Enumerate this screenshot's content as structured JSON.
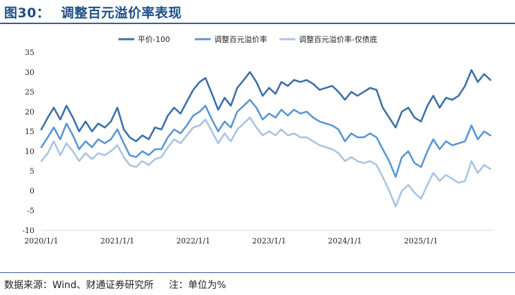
{
  "header": {
    "figure_label": "图30：",
    "title": "调整百元溢价率表现"
  },
  "footer": {
    "source": "数据来源：Wind、财通证券研究所",
    "note": "注：单位为%"
  },
  "colors": {
    "title": "#1a4f86",
    "rule": "#2f5f98",
    "series1": "#3e6fa6",
    "series2": "#5b96d2",
    "series3": "#a9c4e4"
  },
  "chart_data": {
    "type": "line",
    "title": "",
    "xlabel": "",
    "ylabel": "",
    "ylim": [
      -10,
      35
    ],
    "yticks": [
      35,
      30,
      25,
      20,
      15,
      10,
      5,
      0,
      -5,
      -10
    ],
    "xlim": [
      "2020-01-01",
      "2025-12-20"
    ],
    "xticks": [
      "2020/1/1",
      "2021/1/1",
      "2022/1/1",
      "2023/1/1",
      "2024/1/1",
      "2025/1/1"
    ],
    "legend": "top-center",
    "grid": false,
    "series": [
      {
        "name": "平价-100",
        "color": "#3e6fa6",
        "points": [
          [
            "2020-01-01",
            15.5
          ],
          [
            "2020-02-01",
            18.5
          ],
          [
            "2020-03-01",
            21.0
          ],
          [
            "2020-04-01",
            18.0
          ],
          [
            "2020-05-01",
            21.5
          ],
          [
            "2020-06-01",
            18.5
          ],
          [
            "2020-07-01",
            15.0
          ],
          [
            "2020-08-01",
            17.5
          ],
          [
            "2020-09-01",
            15.0
          ],
          [
            "2020-10-01",
            17.0
          ],
          [
            "2020-11-01",
            16.0
          ],
          [
            "2020-12-01",
            17.5
          ],
          [
            "2021-01-01",
            21.0
          ],
          [
            "2021-02-01",
            15.5
          ],
          [
            "2021-03-01",
            13.5
          ],
          [
            "2021-04-01",
            12.5
          ],
          [
            "2021-05-01",
            14.0
          ],
          [
            "2021-06-01",
            13.0
          ],
          [
            "2021-07-01",
            16.0
          ],
          [
            "2021-08-01",
            15.5
          ],
          [
            "2021-09-01",
            19.0
          ],
          [
            "2021-10-01",
            21.0
          ],
          [
            "2021-11-01",
            19.5
          ],
          [
            "2021-12-01",
            22.5
          ],
          [
            "2022-01-01",
            25.5
          ],
          [
            "2022-02-01",
            27.5
          ],
          [
            "2022-03-01",
            28.5
          ],
          [
            "2022-04-01",
            24.5
          ],
          [
            "2022-05-01",
            20.5
          ],
          [
            "2022-06-01",
            23.5
          ],
          [
            "2022-07-01",
            21.5
          ],
          [
            "2022-08-01",
            26.0
          ],
          [
            "2022-09-01",
            28.0
          ],
          [
            "2022-10-01",
            30.0
          ],
          [
            "2022-11-01",
            27.5
          ],
          [
            "2022-12-01",
            24.0
          ],
          [
            "2023-01-01",
            26.0
          ],
          [
            "2023-02-01",
            24.5
          ],
          [
            "2023-03-01",
            27.5
          ],
          [
            "2023-04-01",
            26.5
          ],
          [
            "2023-05-01",
            28.0
          ],
          [
            "2023-06-01",
            27.5
          ],
          [
            "2023-07-01",
            28.0
          ],
          [
            "2023-08-01",
            27.0
          ],
          [
            "2023-09-01",
            25.5
          ],
          [
            "2023-10-01",
            26.0
          ],
          [
            "2023-11-01",
            26.5
          ],
          [
            "2023-12-01",
            25.0
          ],
          [
            "2024-01-01",
            23.0
          ],
          [
            "2024-02-01",
            25.0
          ],
          [
            "2024-03-01",
            24.0
          ],
          [
            "2024-04-01",
            25.0
          ],
          [
            "2024-05-01",
            26.0
          ],
          [
            "2024-06-01",
            25.5
          ],
          [
            "2024-07-01",
            21.0
          ],
          [
            "2024-08-01",
            18.5
          ],
          [
            "2024-09-01",
            16.0
          ],
          [
            "2024-10-01",
            20.0
          ],
          [
            "2024-11-01",
            21.0
          ],
          [
            "2024-12-01",
            18.5
          ],
          [
            "2025-01-01",
            17.5
          ],
          [
            "2025-02-01",
            21.5
          ],
          [
            "2025-03-01",
            24.0
          ],
          [
            "2025-04-01",
            21.0
          ],
          [
            "2025-05-01",
            23.5
          ],
          [
            "2025-06-01",
            23.0
          ],
          [
            "2025-07-01",
            24.0
          ],
          [
            "2025-08-01",
            26.5
          ],
          [
            "2025-09-01",
            30.5
          ],
          [
            "2025-10-01",
            27.5
          ],
          [
            "2025-11-01",
            29.5
          ],
          [
            "2025-12-01",
            28.0
          ]
        ]
      },
      {
        "name": "调整百元溢价率",
        "color": "#5b96d2",
        "points": [
          [
            "2020-01-01",
            11.0
          ],
          [
            "2020-02-01",
            13.5
          ],
          [
            "2020-03-01",
            16.0
          ],
          [
            "2020-04-01",
            13.0
          ],
          [
            "2020-05-01",
            17.0
          ],
          [
            "2020-06-01",
            14.0
          ],
          [
            "2020-07-01",
            10.5
          ],
          [
            "2020-08-01",
            12.5
          ],
          [
            "2020-09-01",
            11.0
          ],
          [
            "2020-10-01",
            13.0
          ],
          [
            "2020-11-01",
            12.0
          ],
          [
            "2020-12-01",
            13.0
          ],
          [
            "2021-01-01",
            15.5
          ],
          [
            "2021-02-01",
            12.0
          ],
          [
            "2021-03-01",
            9.0
          ],
          [
            "2021-04-01",
            8.5
          ],
          [
            "2021-05-01",
            10.0
          ],
          [
            "2021-06-01",
            9.0
          ],
          [
            "2021-07-01",
            10.5
          ],
          [
            "2021-08-01",
            10.5
          ],
          [
            "2021-09-01",
            13.5
          ],
          [
            "2021-10-01",
            15.5
          ],
          [
            "2021-11-01",
            14.5
          ],
          [
            "2021-12-01",
            16.5
          ],
          [
            "2022-01-01",
            19.0
          ],
          [
            "2022-02-01",
            20.0
          ],
          [
            "2022-03-01",
            21.5
          ],
          [
            "2022-04-01",
            18.0
          ],
          [
            "2022-05-01",
            15.0
          ],
          [
            "2022-06-01",
            17.5
          ],
          [
            "2022-07-01",
            16.0
          ],
          [
            "2022-08-01",
            20.0
          ],
          [
            "2022-09-01",
            21.5
          ],
          [
            "2022-10-01",
            23.0
          ],
          [
            "2022-11-01",
            21.0
          ],
          [
            "2022-12-01",
            18.0
          ],
          [
            "2023-01-01",
            19.5
          ],
          [
            "2023-02-01",
            18.5
          ],
          [
            "2023-03-01",
            20.5
          ],
          [
            "2023-04-01",
            19.0
          ],
          [
            "2023-05-01",
            20.5
          ],
          [
            "2023-06-01",
            19.5
          ],
          [
            "2023-07-01",
            20.0
          ],
          [
            "2023-08-01",
            18.5
          ],
          [
            "2023-09-01",
            17.5
          ],
          [
            "2023-10-01",
            17.0
          ],
          [
            "2023-11-01",
            16.5
          ],
          [
            "2023-12-01",
            15.5
          ],
          [
            "2024-01-01",
            12.5
          ],
          [
            "2024-02-01",
            14.5
          ],
          [
            "2024-03-01",
            13.5
          ],
          [
            "2024-04-01",
            13.5
          ],
          [
            "2024-05-01",
            14.5
          ],
          [
            "2024-06-01",
            13.5
          ],
          [
            "2024-07-01",
            10.5
          ],
          [
            "2024-08-01",
            7.5
          ],
          [
            "2024-09-01",
            3.5
          ],
          [
            "2024-10-01",
            8.5
          ],
          [
            "2024-11-01",
            10.0
          ],
          [
            "2024-12-01",
            7.0
          ],
          [
            "2025-01-01",
            6.0
          ],
          [
            "2025-02-01",
            10.0
          ],
          [
            "2025-03-01",
            13.0
          ],
          [
            "2025-04-01",
            10.5
          ],
          [
            "2025-05-01",
            12.5
          ],
          [
            "2025-06-01",
            11.5
          ],
          [
            "2025-07-01",
            12.0
          ],
          [
            "2025-08-01",
            12.5
          ],
          [
            "2025-09-01",
            16.5
          ],
          [
            "2025-10-01",
            13.0
          ],
          [
            "2025-11-01",
            15.0
          ],
          [
            "2025-12-01",
            14.0
          ]
        ]
      },
      {
        "name": "调整百元溢价率-仅债底",
        "color": "#a9c4e4",
        "points": [
          [
            "2020-01-01",
            7.5
          ],
          [
            "2020-02-01",
            9.5
          ],
          [
            "2020-03-01",
            12.5
          ],
          [
            "2020-04-01",
            9.0
          ],
          [
            "2020-05-01",
            12.0
          ],
          [
            "2020-06-01",
            10.0
          ],
          [
            "2020-07-01",
            7.5
          ],
          [
            "2020-08-01",
            9.5
          ],
          [
            "2020-09-01",
            8.0
          ],
          [
            "2020-10-01",
            9.5
          ],
          [
            "2020-11-01",
            9.0
          ],
          [
            "2020-12-01",
            10.0
          ],
          [
            "2021-01-01",
            11.5
          ],
          [
            "2021-02-01",
            8.5
          ],
          [
            "2021-03-01",
            6.5
          ],
          [
            "2021-04-01",
            6.0
          ],
          [
            "2021-05-01",
            7.5
          ],
          [
            "2021-06-01",
            6.5
          ],
          [
            "2021-07-01",
            8.0
          ],
          [
            "2021-08-01",
            8.5
          ],
          [
            "2021-09-01",
            11.0
          ],
          [
            "2021-10-01",
            13.0
          ],
          [
            "2021-11-01",
            12.0
          ],
          [
            "2021-12-01",
            14.0
          ],
          [
            "2022-01-01",
            16.0
          ],
          [
            "2022-02-01",
            16.5
          ],
          [
            "2022-03-01",
            18.0
          ],
          [
            "2022-04-01",
            15.0
          ],
          [
            "2022-05-01",
            12.0
          ],
          [
            "2022-06-01",
            14.5
          ],
          [
            "2022-07-01",
            12.5
          ],
          [
            "2022-08-01",
            15.5
          ],
          [
            "2022-09-01",
            17.0
          ],
          [
            "2022-10-01",
            18.5
          ],
          [
            "2022-11-01",
            16.0
          ],
          [
            "2022-12-01",
            14.0
          ],
          [
            "2023-01-01",
            15.0
          ],
          [
            "2023-02-01",
            14.0
          ],
          [
            "2023-03-01",
            15.5
          ],
          [
            "2023-04-01",
            14.0
          ],
          [
            "2023-05-01",
            14.5
          ],
          [
            "2023-06-01",
            13.5
          ],
          [
            "2023-07-01",
            13.5
          ],
          [
            "2023-08-01",
            12.5
          ],
          [
            "2023-09-01",
            11.5
          ],
          [
            "2023-10-01",
            11.0
          ],
          [
            "2023-11-01",
            10.5
          ],
          [
            "2023-12-01",
            9.5
          ],
          [
            "2024-01-01",
            7.5
          ],
          [
            "2024-02-01",
            8.5
          ],
          [
            "2024-03-01",
            7.5
          ],
          [
            "2024-04-01",
            7.0
          ],
          [
            "2024-05-01",
            7.5
          ],
          [
            "2024-06-01",
            6.5
          ],
          [
            "2024-07-01",
            3.5
          ],
          [
            "2024-08-01",
            0.0
          ],
          [
            "2024-09-01",
            -4.0
          ],
          [
            "2024-10-01",
            0.0
          ],
          [
            "2024-11-01",
            1.5
          ],
          [
            "2024-12-01",
            -0.5
          ],
          [
            "2025-01-01",
            -2.0
          ],
          [
            "2025-02-01",
            1.5
          ],
          [
            "2025-03-01",
            4.5
          ],
          [
            "2025-04-01",
            2.5
          ],
          [
            "2025-05-01",
            4.0
          ],
          [
            "2025-06-01",
            3.0
          ],
          [
            "2025-07-01",
            2.0
          ],
          [
            "2025-08-01",
            2.5
          ],
          [
            "2025-09-01",
            7.5
          ],
          [
            "2025-10-01",
            4.5
          ],
          [
            "2025-11-01",
            6.5
          ],
          [
            "2025-12-01",
            5.5
          ]
        ]
      }
    ]
  }
}
